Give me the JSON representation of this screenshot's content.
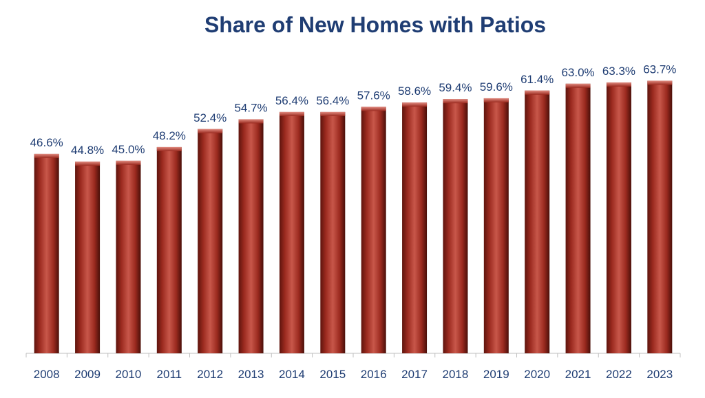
{
  "chart_data": {
    "type": "bar",
    "title": "Share of New Homes with Patios",
    "categories": [
      "2008",
      "2009",
      "2010",
      "2011",
      "2012",
      "2013",
      "2014",
      "2015",
      "2016",
      "2017",
      "2018",
      "2019",
      "2020",
      "2021",
      "2022",
      "2023"
    ],
    "values": [
      46.6,
      44.8,
      45.0,
      48.2,
      52.4,
      54.7,
      56.4,
      56.4,
      57.6,
      58.6,
      59.4,
      59.6,
      61.4,
      63.0,
      63.3,
      63.7
    ],
    "value_labels": [
      "46.6%",
      "44.8%",
      "45.0%",
      "48.2%",
      "52.4%",
      "54.7%",
      "56.4%",
      "56.4%",
      "57.6%",
      "58.6%",
      "59.4%",
      "59.6%",
      "61.4%",
      "63.0%",
      "63.3%",
      "63.7%"
    ],
    "xlabel": "",
    "ylabel": "",
    "ylim": [
      0,
      66.5
    ],
    "grid": false,
    "legend": "none",
    "colors": {
      "bar": "#9b2a1f",
      "bar_highlight": "#c8574a",
      "bar_shadow": "#5e140d",
      "text": "#1f3d73",
      "axis": "#bfbfbf"
    }
  }
}
